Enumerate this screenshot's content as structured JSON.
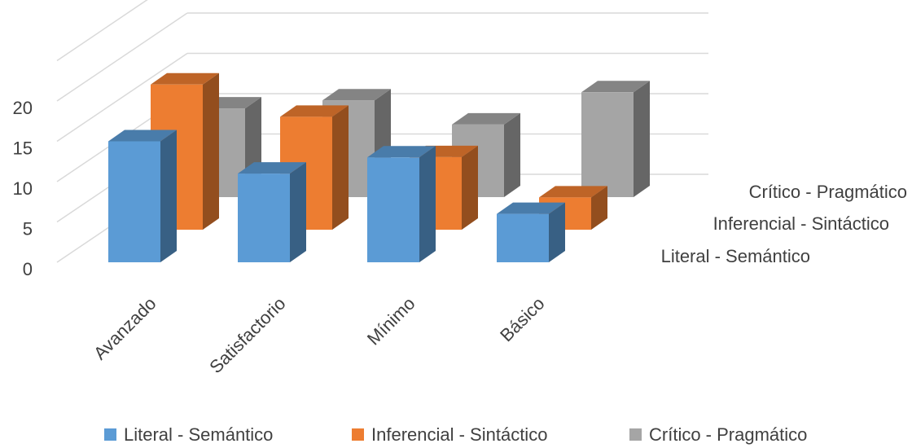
{
  "chart_data": {
    "type": "bar",
    "variant": "3d-column",
    "categories": [
      "Avanzado",
      "Satisfactorio",
      "Mínimo",
      "Básico"
    ],
    "series": [
      {
        "name": "Literal - Semántico",
        "values": [
          15,
          11,
          13,
          6
        ]
      },
      {
        "name": "Inferencial - Sintáctico",
        "values": [
          18,
          14,
          9,
          4
        ]
      },
      {
        "name": "Crítico - Pragmático",
        "values": [
          11,
          12,
          9,
          13
        ]
      }
    ],
    "yticks": [
      0,
      5,
      10,
      15,
      20
    ],
    "ylim": [
      0,
      25
    ],
    "grid": true,
    "legend_position": "bottom",
    "colors": [
      "#5b9bd5",
      "#ed7d31",
      "#a5a5a5"
    ]
  }
}
